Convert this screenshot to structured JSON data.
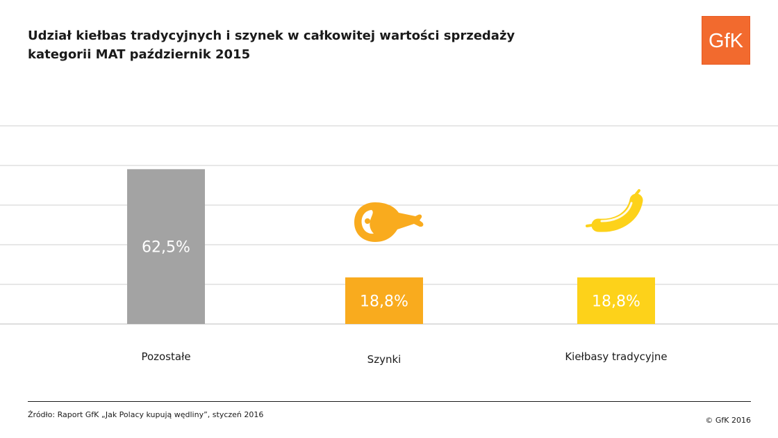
{
  "header": {
    "title_line1": "Udział kiełbas tradycyjnych i szynek w całkowitej wartości sprzedaży",
    "title_line2": "kategorii MAT październik 2015"
  },
  "logo": {
    "text": "GfK",
    "color": "#f26a2e"
  },
  "chart_data": {
    "type": "bar",
    "title": "Udział kiełbas tradycyjnych i szynek w całkowitej wartości sprzedaży kategorii MAT październik 2015",
    "categories": [
      "Pozostałe",
      "Szynki",
      "Kiełbasy tradycyjne"
    ],
    "values": [
      62.5,
      18.8,
      18.8
    ],
    "data_labels": [
      "62,5%",
      "18,8%",
      "18,8%"
    ],
    "colors": [
      "#a3a3a3",
      "#f9ab1e",
      "#fdd21a"
    ],
    "icons": [
      "",
      "ham-icon",
      "sausage-icon"
    ],
    "ylim": [
      0,
      80
    ],
    "grid": true,
    "xlabel": "",
    "ylabel": ""
  },
  "footer": {
    "source": "Źródło: Raport GfK „Jak Polacy kupują wędliny”, styczeń 2016",
    "copyright": "© GfK 2016"
  }
}
